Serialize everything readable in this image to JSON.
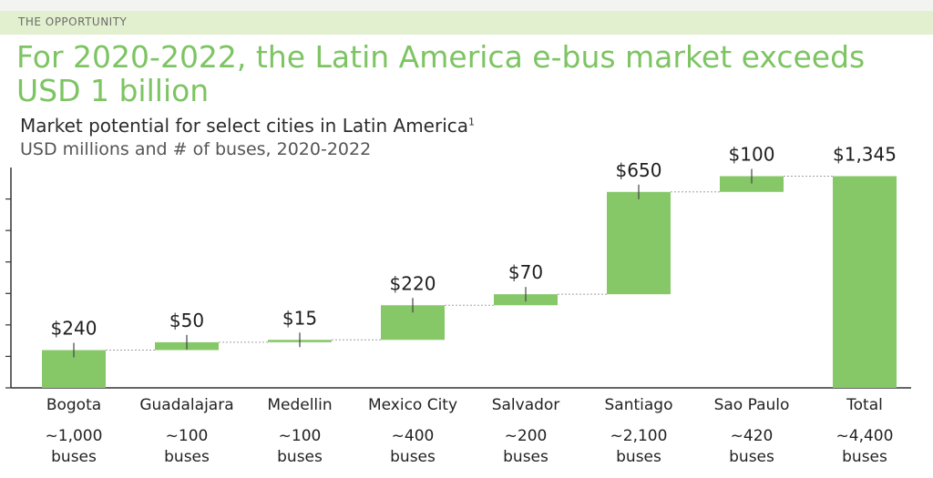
{
  "header": {
    "section_label": "THE OPPORTUNITY",
    "title": "For 2020-2022, the Latin America e-bus market exceeds USD 1 billion"
  },
  "chart_data": {
    "type": "waterfall",
    "title": "Market potential for select cities in Latin America",
    "title_footnote": "1",
    "subtitle": "USD millions and # of buses, 2020-2022",
    "categories": [
      "Bogota",
      "Guadalajara",
      "Medellin",
      "Mexico City",
      "Salvador",
      "Santiago",
      "Sao Paulo",
      "Total"
    ],
    "values": [
      240,
      50,
      15,
      220,
      70,
      650,
      100,
      1345
    ],
    "value_labels": [
      "$240",
      "$50",
      "$15",
      "$220",
      "$70",
      "$650",
      "$100",
      "$1,345"
    ],
    "bus_counts": [
      "~1,000",
      "~100",
      "~100",
      "~400",
      "~200",
      "~2,100",
      "~420",
      "~4,400"
    ],
    "bus_unit": "buses",
    "total_index": 7,
    "ylim": [
      0,
      1400
    ],
    "bar_color": "#86c868"
  }
}
